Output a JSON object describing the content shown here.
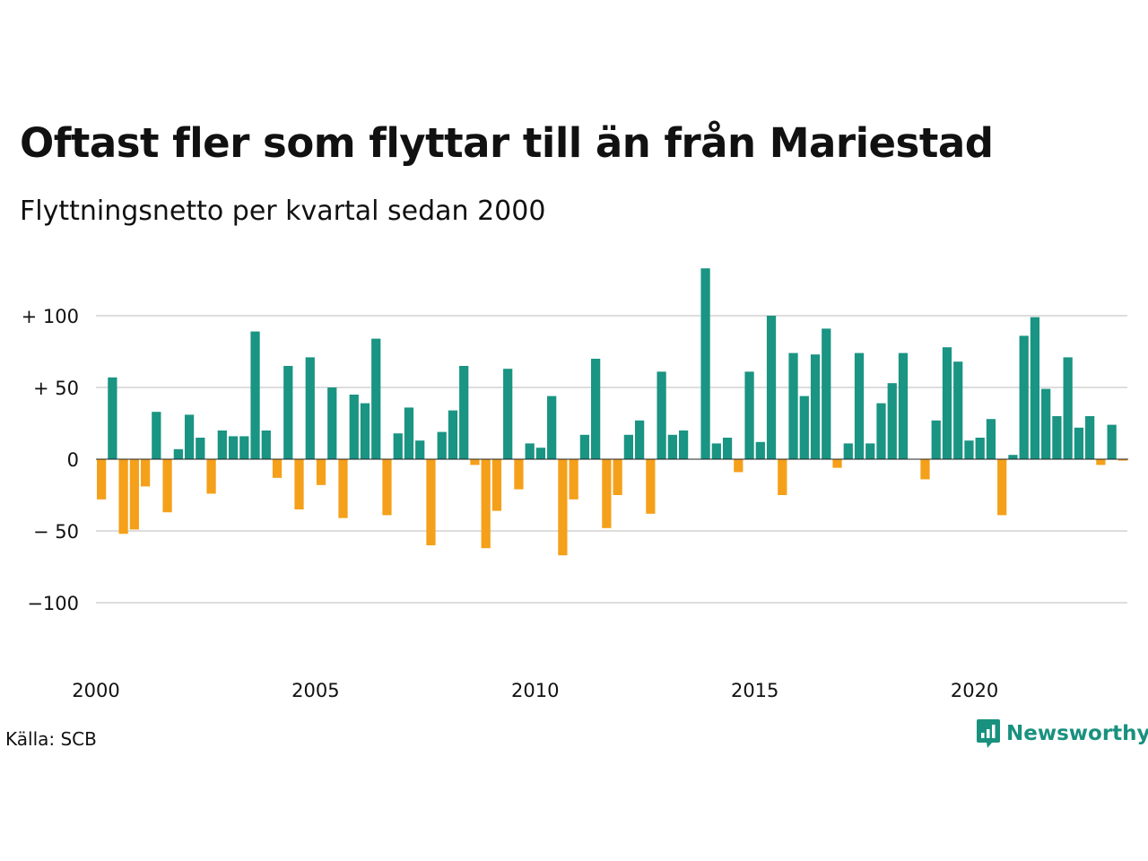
{
  "title": "Oftast fler som flyttar till än från Mariestad",
  "subtitle": "Flyttningsnetto per kvartal sedan 2000",
  "source": "Källa: SCB",
  "brand": "Newsworthy",
  "colors": {
    "positive": "#1a9483",
    "negative": "#f5a01a",
    "grid": "#dddddd",
    "brand": "#19917f"
  },
  "chart_data": {
    "type": "bar",
    "ylim": [
      -145,
      145
    ],
    "y_ticks": [
      {
        "value": 100,
        "label": "+ 100"
      },
      {
        "value": 50,
        "label": "+  50"
      },
      {
        "value": 0,
        "label": "0"
      },
      {
        "value": -50,
        "label": "− 50"
      },
      {
        "value": -100,
        "label": "−100"
      }
    ],
    "x_ticks": [
      {
        "year": 2000,
        "label": "2000"
      },
      {
        "year": 2005,
        "label": "2005"
      },
      {
        "year": 2010,
        "label": "2010"
      },
      {
        "year": 2015,
        "label": "2015"
      },
      {
        "year": 2020,
        "label": "2020"
      }
    ],
    "start": "2000 Q1",
    "values": [
      -28,
      57,
      -52,
      -49,
      -19,
      33,
      -37,
      7,
      31,
      15,
      -24,
      20,
      16,
      16,
      89,
      20,
      -13,
      65,
      -35,
      71,
      -18,
      50,
      -41,
      45,
      39,
      84,
      -39,
      18,
      36,
      13,
      -60,
      19,
      34,
      65,
      -4,
      -62,
      -36,
      63,
      -21,
      11,
      8,
      44,
      -67,
      -28,
      17,
      70,
      -48,
      -25,
      17,
      27,
      -38,
      61,
      17,
      20,
      0,
      133,
      11,
      15,
      -9,
      61,
      12,
      100,
      -25,
      74,
      44,
      73,
      91,
      -6,
      11,
      74,
      11,
      39,
      53,
      74,
      0,
      -14,
      27,
      78,
      68,
      13,
      15,
      28,
      -39,
      3,
      86,
      99,
      49,
      30,
      71,
      22,
      30,
      -4,
      24,
      -1
    ]
  }
}
